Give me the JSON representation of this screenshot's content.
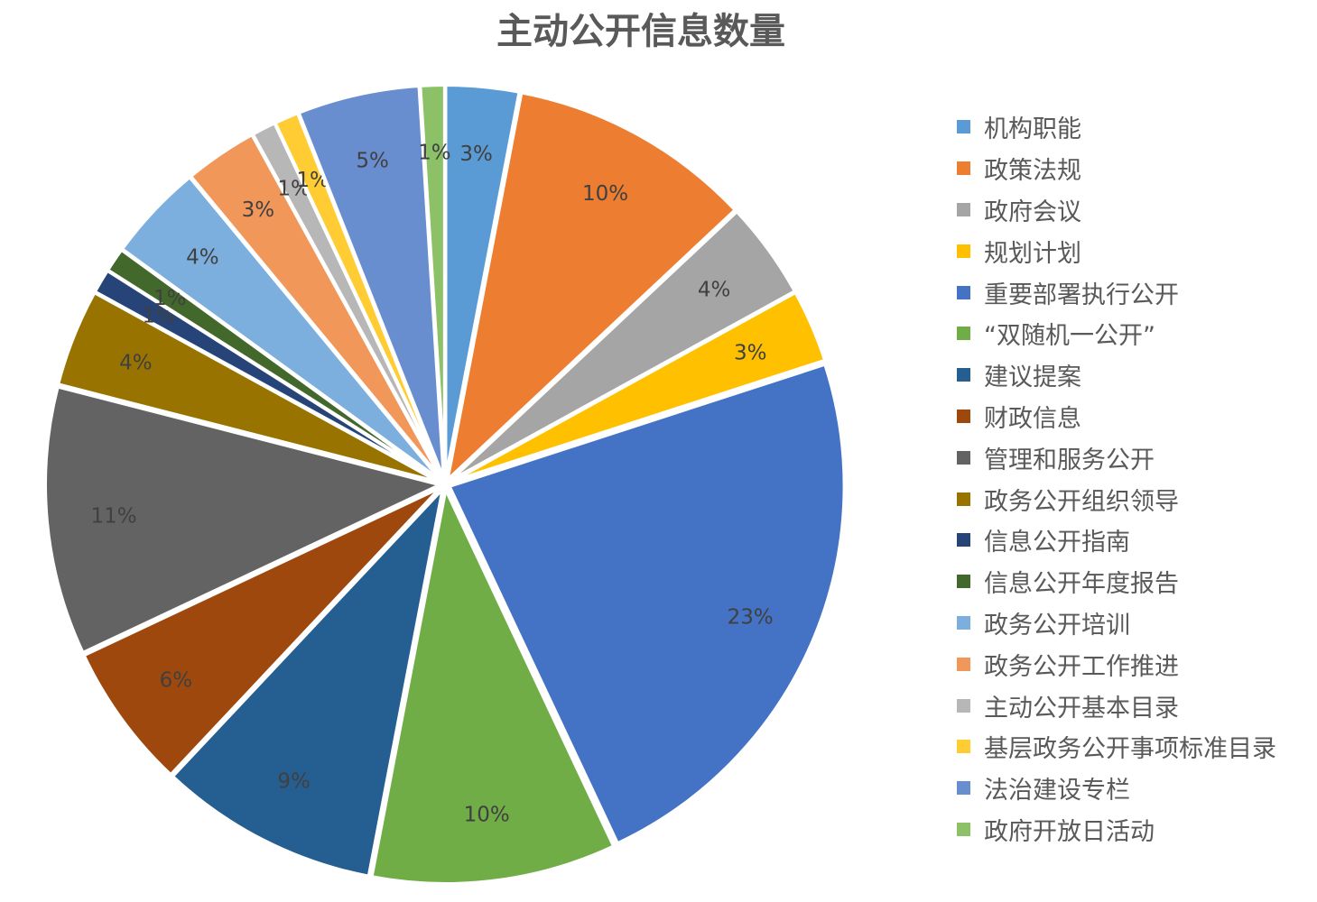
{
  "chart_data": {
    "type": "pie",
    "title": "主动公开信息数量",
    "legend_position": "right",
    "start_angle": "12 o'clock, clockwise",
    "exploded": true,
    "slices": [
      {
        "label": "机构职能",
        "value": 3,
        "data_label": "3%",
        "color": "#5B9BD5"
      },
      {
        "label": "政策法规",
        "value": 10,
        "data_label": "10%",
        "color": "#ED7D31"
      },
      {
        "label": "政府会议",
        "value": 4,
        "data_label": "4%",
        "color": "#A5A5A5"
      },
      {
        "label": "规划计划",
        "value": 3,
        "data_label": "3%",
        "color": "#FFC000"
      },
      {
        "label": "重要部署执行公开",
        "value": 23,
        "data_label": "23%",
        "color": "#4472C4"
      },
      {
        "label": "“双随机一公开”",
        "value": 10,
        "data_label": "10%",
        "color": "#70AD47"
      },
      {
        "label": "建议提案",
        "value": 9,
        "data_label": "9%",
        "color": "#255E91"
      },
      {
        "label": "财政信息",
        "value": 6,
        "data_label": "6%",
        "color": "#9E480E"
      },
      {
        "label": "管理和服务公开",
        "value": 11,
        "data_label": "11%",
        "color": "#636363"
      },
      {
        "label": "政务公开组织领导",
        "value": 4,
        "data_label": "4%",
        "color": "#997300"
      },
      {
        "label": "信息公开指南",
        "value": 1,
        "data_label": "1%",
        "color": "#264478"
      },
      {
        "label": "信息公开年度报告",
        "value": 1,
        "data_label": "1%",
        "color": "#43682B"
      },
      {
        "label": "政务公开培训",
        "value": 4,
        "data_label": "4%",
        "color": "#7CAFDD"
      },
      {
        "label": "政务公开工作推进",
        "value": 3,
        "data_label": "3%",
        "color": "#F1975A"
      },
      {
        "label": "主动公开基本目录",
        "value": 1,
        "data_label": "1%",
        "color": "#B7B7B7"
      },
      {
        "label": "基层政务公开事项标准目录",
        "value": 1,
        "data_label": "1%",
        "color": "#FFCD33"
      },
      {
        "label": "法治建设专栏",
        "value": 5,
        "data_label": "5%",
        "color": "#698ED0"
      },
      {
        "label": "政府开放日活动",
        "value": 1,
        "data_label": "1%",
        "color": "#8CC168"
      }
    ]
  }
}
